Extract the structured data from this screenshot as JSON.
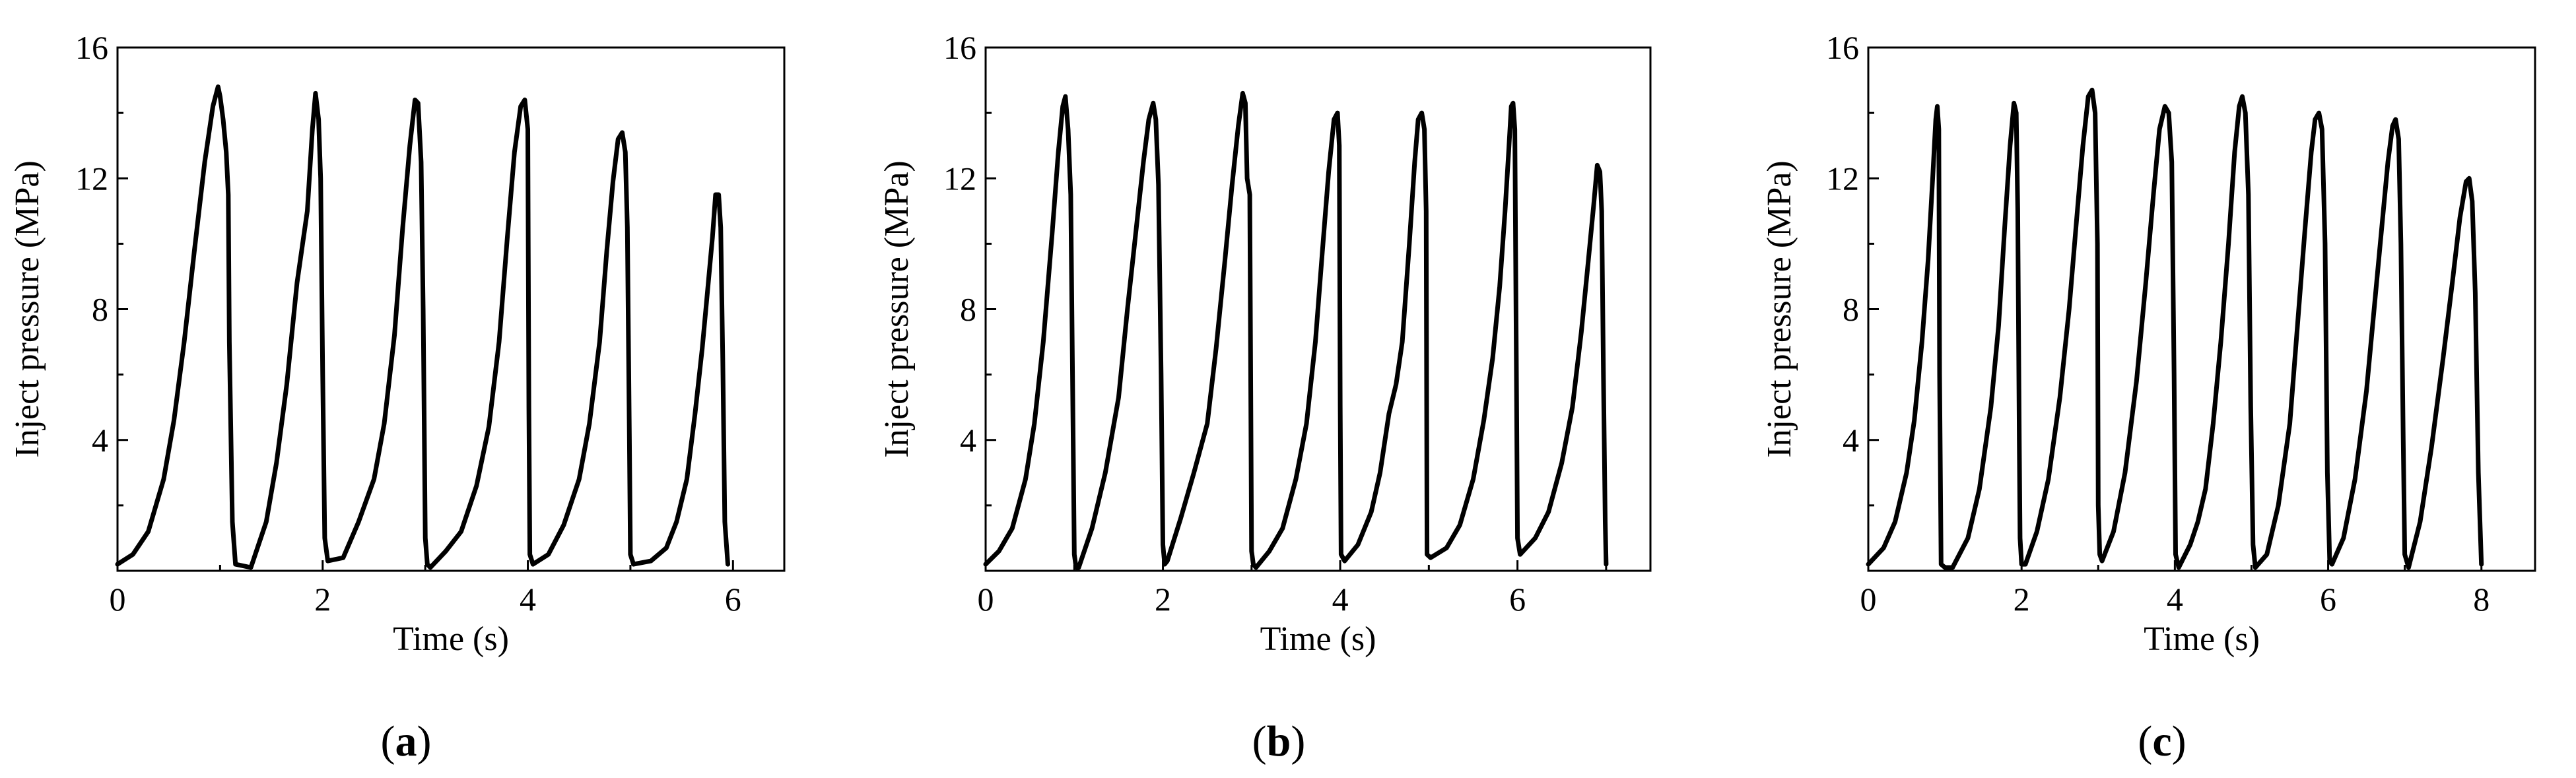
{
  "chart_data": [
    {
      "type": "line",
      "panel_label": "(a)",
      "panel_letter": "a",
      "xlabel": "Time (s)",
      "ylabel": "Inject pressure (MPa)",
      "xlim": [
        0,
        6.5
      ],
      "ylim": [
        0,
        16
      ],
      "xticks": [
        0,
        2,
        4,
        6
      ],
      "yticks": [
        4,
        8,
        12,
        16
      ],
      "series": [
        {
          "name": "pressure",
          "x": [
            0,
            0.15,
            0.3,
            0.45,
            0.55,
            0.65,
            0.75,
            0.85,
            0.93,
            0.98,
            1.0,
            1.03,
            1.06,
            1.08,
            1.09,
            1.12,
            1.15,
            1.3,
            1.45,
            1.55,
            1.65,
            1.75,
            1.85,
            1.9,
            1.93,
            1.96,
            1.98,
            2.0,
            2.02,
            2.05,
            2.2,
            2.35,
            2.5,
            2.6,
            2.7,
            2.78,
            2.85,
            2.9,
            2.93,
            2.96,
            2.98,
            3.0,
            3.02,
            3.05,
            3.2,
            3.35,
            3.5,
            3.62,
            3.72,
            3.8,
            3.87,
            3.93,
            3.97,
            4.0,
            4.01,
            4.02,
            4.05,
            4.2,
            4.35,
            4.5,
            4.6,
            4.7,
            4.77,
            4.83,
            4.88,
            4.92,
            4.95,
            4.97,
            4.99,
            5.0,
            5.03,
            5.2,
            5.35,
            5.45,
            5.55,
            5.63,
            5.7,
            5.75,
            5.8,
            5.83,
            5.86,
            5.88,
            5.9,
            5.92,
            5.95
          ],
          "y": [
            0.2,
            0.5,
            1.2,
            2.8,
            4.6,
            7.0,
            9.8,
            12.5,
            14.2,
            14.8,
            14.5,
            13.8,
            12.8,
            11.5,
            7.0,
            1.5,
            0.2,
            0.1,
            1.5,
            3.3,
            5.7,
            8.8,
            11.0,
            13.5,
            14.6,
            13.8,
            12.0,
            6.0,
            1.0,
            0.3,
            0.4,
            1.5,
            2.8,
            4.5,
            7.2,
            10.5,
            13.0,
            14.4,
            14.3,
            12.5,
            8.0,
            1.0,
            0.2,
            0.1,
            0.6,
            1.2,
            2.6,
            4.4,
            7.0,
            10.2,
            12.8,
            14.2,
            14.4,
            13.5,
            5.0,
            0.5,
            0.2,
            0.5,
            1.4,
            2.8,
            4.5,
            7.0,
            9.8,
            11.9,
            13.2,
            13.4,
            12.8,
            10.5,
            4.0,
            0.5,
            0.2,
            0.3,
            0.7,
            1.5,
            2.8,
            4.8,
            6.8,
            8.5,
            10.2,
            11.5,
            11.5,
            10.5,
            6.5,
            1.5,
            0.2
          ]
        }
      ]
    },
    {
      "type": "line",
      "panel_label": "(b)",
      "panel_letter": "b",
      "xlabel": "Time (s)",
      "ylabel": "Inject pressure (MPa)",
      "xlim": [
        0,
        7.5
      ],
      "ylim": [
        0,
        16
      ],
      "xticks": [
        0,
        2,
        4,
        6
      ],
      "yticks": [
        4,
        8,
        12,
        16
      ],
      "series": [
        {
          "name": "pressure",
          "x": [
            0,
            0.15,
            0.3,
            0.45,
            0.55,
            0.65,
            0.75,
            0.82,
            0.87,
            0.9,
            0.93,
            0.96,
            0.98,
            1.0,
            1.02,
            1.05,
            1.2,
            1.35,
            1.5,
            1.6,
            1.7,
            1.78,
            1.84,
            1.89,
            1.92,
            1.95,
            1.98,
            2.0,
            2.02,
            2.05,
            2.2,
            2.35,
            2.5,
            2.6,
            2.7,
            2.78,
            2.85,
            2.9,
            2.93,
            2.95,
            2.98,
            3.0,
            3.02,
            3.05,
            3.2,
            3.35,
            3.5,
            3.62,
            3.72,
            3.8,
            3.87,
            3.93,
            3.97,
            3.99,
            4.0,
            4.01,
            4.05,
            4.2,
            4.35,
            4.45,
            4.55,
            4.63,
            4.7,
            4.78,
            4.84,
            4.88,
            4.92,
            4.95,
            4.97,
            4.98,
            5.02,
            5.2,
            5.35,
            5.5,
            5.62,
            5.72,
            5.8,
            5.86,
            5.9,
            5.93,
            5.95,
            5.97,
            6.0,
            6.03,
            6.2,
            6.35,
            6.5,
            6.62,
            6.72,
            6.8,
            6.86,
            6.9,
            6.93,
            6.95,
            6.97,
            6.99,
            7.0
          ],
          "y": [
            0.2,
            0.6,
            1.3,
            2.8,
            4.5,
            7.0,
            10.3,
            12.8,
            14.2,
            14.5,
            13.5,
            11.5,
            6.0,
            0.5,
            0.1,
            0.1,
            1.3,
            3.0,
            5.3,
            8.0,
            10.5,
            12.5,
            13.8,
            14.3,
            13.8,
            11.8,
            6.0,
            0.8,
            0.2,
            0.3,
            1.6,
            3.0,
            4.5,
            6.8,
            9.5,
            11.8,
            13.6,
            14.6,
            14.3,
            12.0,
            11.5,
            0.6,
            0.2,
            0.1,
            0.6,
            1.3,
            2.8,
            4.5,
            7.0,
            9.8,
            12.2,
            13.8,
            14.0,
            13.0,
            5.0,
            0.5,
            0.3,
            0.8,
            1.8,
            3.0,
            4.8,
            5.7,
            7.0,
            10.0,
            12.5,
            13.8,
            14.0,
            13.5,
            11.0,
            0.5,
            0.4,
            0.7,
            1.4,
            2.8,
            4.6,
            6.5,
            8.7,
            11.0,
            12.8,
            14.2,
            14.3,
            13.5,
            1.0,
            0.5,
            1.0,
            1.8,
            3.3,
            5.0,
            7.3,
            9.5,
            11.2,
            12.4,
            12.2,
            11.0,
            6.0,
            1.5,
            0.2
          ]
        }
      ]
    },
    {
      "type": "line",
      "panel_label": "(c)",
      "panel_letter": "c",
      "xlabel": "Time (s)",
      "ylabel": "Inject pressure (MPa)",
      "xlim": [
        0,
        8.7
      ],
      "ylim": [
        0,
        16
      ],
      "xticks": [
        0,
        2,
        4,
        6,
        8
      ],
      "yticks": [
        4,
        8,
        12,
        16
      ],
      "series": [
        {
          "name": "pressure",
          "x": [
            0,
            0.2,
            0.35,
            0.5,
            0.6,
            0.7,
            0.78,
            0.84,
            0.88,
            0.9,
            0.92,
            0.93,
            0.95,
            1.0,
            1.1,
            1.3,
            1.45,
            1.6,
            1.7,
            1.78,
            1.85,
            1.9,
            1.93,
            1.95,
            1.97,
            1.98,
            2.0,
            2.05,
            2.2,
            2.35,
            2.5,
            2.62,
            2.72,
            2.8,
            2.87,
            2.92,
            2.96,
            2.99,
            3.0,
            3.02,
            3.05,
            3.2,
            3.35,
            3.5,
            3.62,
            3.72,
            3.8,
            3.87,
            3.92,
            3.96,
            3.99,
            4.01,
            4.05,
            4.2,
            4.3,
            4.4,
            4.5,
            4.6,
            4.7,
            4.78,
            4.84,
            4.88,
            4.92,
            4.96,
            4.99,
            5.02,
            5.05,
            5.2,
            5.35,
            5.5,
            5.6,
            5.7,
            5.78,
            5.83,
            5.88,
            5.92,
            5.96,
            5.99,
            6.02,
            6.05,
            6.2,
            6.35,
            6.5,
            6.6,
            6.7,
            6.78,
            6.84,
            6.88,
            6.92,
            6.95,
            6.98,
            7.0,
            7.05,
            7.2,
            7.35,
            7.5,
            7.62,
            7.72,
            7.8,
            7.84,
            7.88,
            7.92,
            7.96,
            8.0
          ],
          "y": [
            0.2,
            0.7,
            1.5,
            3.0,
            4.6,
            7.0,
            9.5,
            12.0,
            13.8,
            14.2,
            13.5,
            6.0,
            0.2,
            0.1,
            0.1,
            1.0,
            2.5,
            5.0,
            7.5,
            10.5,
            13.0,
            14.3,
            14.0,
            11.0,
            4.0,
            1.0,
            0.2,
            0.2,
            1.2,
            2.8,
            5.3,
            8.0,
            10.8,
            13.0,
            14.5,
            14.7,
            14.0,
            10.0,
            2.0,
            0.5,
            0.3,
            1.2,
            3.0,
            5.8,
            8.8,
            11.5,
            13.5,
            14.2,
            14.0,
            12.5,
            6.0,
            0.5,
            0.1,
            0.8,
            1.5,
            2.5,
            4.5,
            7.0,
            10.0,
            12.8,
            14.2,
            14.5,
            14.0,
            11.5,
            5.0,
            0.8,
            0.1,
            0.5,
            2.0,
            4.5,
            7.5,
            10.5,
            12.8,
            13.8,
            14.0,
            13.5,
            10.0,
            3.0,
            0.3,
            0.2,
            1.0,
            2.8,
            5.5,
            8.0,
            10.5,
            12.5,
            13.6,
            13.8,
            13.2,
            10.0,
            4.0,
            0.5,
            0.1,
            1.5,
            3.8,
            6.5,
            8.8,
            10.8,
            11.9,
            12.0,
            11.3,
            8.5,
            3.0,
            0.2
          ]
        }
      ]
    }
  ]
}
